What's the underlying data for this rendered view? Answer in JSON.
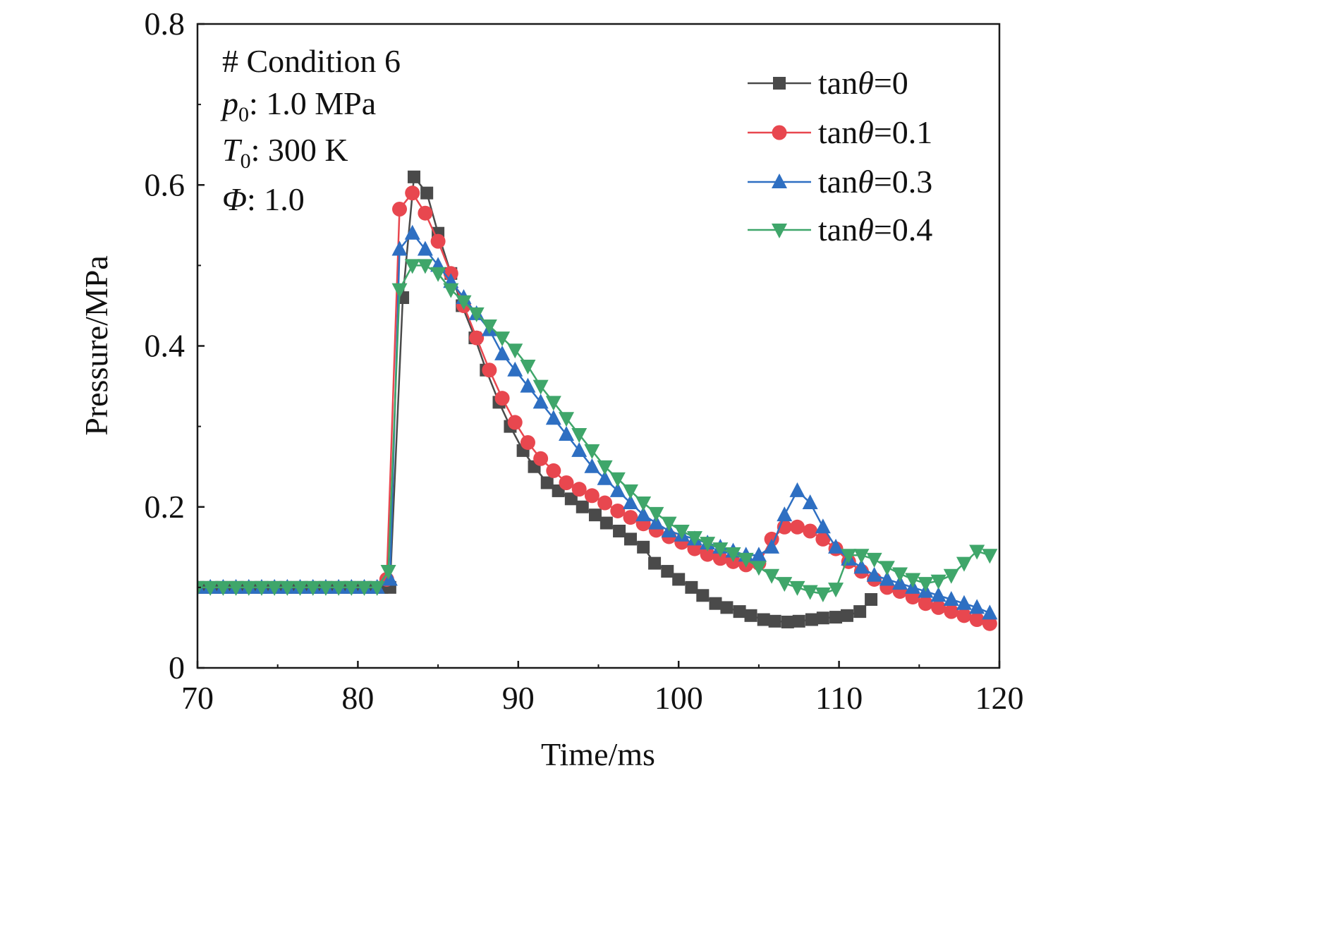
{
  "chart_data": {
    "type": "line",
    "xlabel": "Time/ms",
    "ylabel": "Pressure/MPa",
    "xlim": [
      70,
      120
    ],
    "ylim": [
      0,
      0.8
    ],
    "xticks": [
      "70",
      "80",
      "90",
      "100",
      "110",
      "120"
    ],
    "yticks": [
      "0",
      "0.2",
      "0.4",
      "0.6",
      "0.8"
    ],
    "grid": false,
    "legend_position": "top-right",
    "annotations": [
      {
        "prefix": "# Condition 6",
        "sym": "",
        "sub": "",
        "rest": ""
      },
      {
        "prefix": "",
        "sym": "p",
        "sub": "0",
        "rest": ": 1.0 MPa"
      },
      {
        "prefix": "",
        "sym": "T",
        "sub": "0",
        "rest": ": 300 K"
      },
      {
        "prefix": "",
        "sym": "Φ",
        "sub": "",
        "rest": ": 1.0"
      }
    ],
    "series": [
      {
        "name": "tanθ=0",
        "legend": {
          "pre": "tan",
          "sym": "θ",
          "post": "=0"
        },
        "color": "#4a4a4a",
        "marker": "square",
        "points": [
          [
            70.0,
            0.1
          ],
          [
            70.5,
            0.1
          ],
          [
            71.0,
            0.1
          ],
          [
            71.5,
            0.1
          ],
          [
            72.0,
            0.1
          ],
          [
            72.5,
            0.1
          ],
          [
            73.0,
            0.1
          ],
          [
            73.5,
            0.1
          ],
          [
            74.0,
            0.1
          ],
          [
            74.5,
            0.1
          ],
          [
            75.0,
            0.1
          ],
          [
            75.5,
            0.1
          ],
          [
            76.0,
            0.1
          ],
          [
            76.5,
            0.1
          ],
          [
            77.0,
            0.1
          ],
          [
            77.5,
            0.1
          ],
          [
            78.0,
            0.1
          ],
          [
            78.5,
            0.1
          ],
          [
            79.0,
            0.1
          ],
          [
            79.5,
            0.1
          ],
          [
            80.0,
            0.1
          ],
          [
            80.5,
            0.1
          ],
          [
            81.0,
            0.1
          ],
          [
            81.5,
            0.1
          ],
          [
            82.0,
            0.1
          ],
          [
            82.8,
            0.46
          ],
          [
            83.5,
            0.61
          ],
          [
            84.3,
            0.59
          ],
          [
            85.0,
            0.54
          ],
          [
            85.8,
            0.49
          ],
          [
            86.5,
            0.45
          ],
          [
            87.3,
            0.41
          ],
          [
            88.0,
            0.37
          ],
          [
            88.8,
            0.33
          ],
          [
            89.5,
            0.3
          ],
          [
            90.3,
            0.27
          ],
          [
            91.0,
            0.25
          ],
          [
            91.8,
            0.23
          ],
          [
            92.5,
            0.22
          ],
          [
            93.3,
            0.21
          ],
          [
            94.0,
            0.2
          ],
          [
            94.8,
            0.19
          ],
          [
            95.5,
            0.18
          ],
          [
            96.3,
            0.17
          ],
          [
            97.0,
            0.16
          ],
          [
            97.8,
            0.15
          ],
          [
            98.5,
            0.13
          ],
          [
            99.3,
            0.12
          ],
          [
            100.0,
            0.11
          ],
          [
            100.8,
            0.1
          ],
          [
            101.5,
            0.09
          ],
          [
            102.3,
            0.08
          ],
          [
            103.0,
            0.075
          ],
          [
            103.8,
            0.07
          ],
          [
            104.5,
            0.065
          ],
          [
            105.3,
            0.06
          ],
          [
            106.0,
            0.058
          ],
          [
            106.8,
            0.057
          ],
          [
            107.5,
            0.058
          ],
          [
            108.3,
            0.06
          ],
          [
            109.0,
            0.062
          ],
          [
            109.8,
            0.063
          ],
          [
            110.5,
            0.065
          ],
          [
            111.3,
            0.07
          ],
          [
            112.0,
            0.085
          ]
        ]
      },
      {
        "name": "tanθ=0.1",
        "legend": {
          "pre": "tan",
          "sym": "θ",
          "post": "=0.1"
        },
        "color": "#e8474f",
        "marker": "circle",
        "points": [
          [
            81.8,
            0.11
          ],
          [
            82.6,
            0.57
          ],
          [
            83.4,
            0.59
          ],
          [
            84.2,
            0.565
          ],
          [
            85.0,
            0.53
          ],
          [
            85.8,
            0.49
          ],
          [
            86.6,
            0.45
          ],
          [
            87.4,
            0.41
          ],
          [
            88.2,
            0.37
          ],
          [
            89.0,
            0.335
          ],
          [
            89.8,
            0.305
          ],
          [
            90.6,
            0.28
          ],
          [
            91.4,
            0.26
          ],
          [
            92.2,
            0.245
          ],
          [
            93.0,
            0.23
          ],
          [
            93.8,
            0.222
          ],
          [
            94.6,
            0.214
          ],
          [
            95.4,
            0.205
          ],
          [
            96.2,
            0.195
          ],
          [
            97.0,
            0.187
          ],
          [
            97.8,
            0.179
          ],
          [
            98.6,
            0.171
          ],
          [
            99.4,
            0.163
          ],
          [
            100.2,
            0.156
          ],
          [
            101.0,
            0.148
          ],
          [
            101.8,
            0.141
          ],
          [
            102.6,
            0.136
          ],
          [
            103.4,
            0.132
          ],
          [
            104.2,
            0.128
          ],
          [
            105.0,
            0.13
          ],
          [
            105.8,
            0.16
          ],
          [
            106.6,
            0.175
          ],
          [
            107.4,
            0.175
          ],
          [
            108.2,
            0.17
          ],
          [
            109.0,
            0.16
          ],
          [
            109.8,
            0.148
          ],
          [
            110.6,
            0.132
          ],
          [
            111.4,
            0.12
          ],
          [
            112.2,
            0.11
          ],
          [
            113.0,
            0.1
          ],
          [
            113.8,
            0.095
          ],
          [
            114.6,
            0.088
          ],
          [
            115.4,
            0.08
          ],
          [
            116.2,
            0.075
          ],
          [
            117.0,
            0.07
          ],
          [
            117.8,
            0.065
          ],
          [
            118.6,
            0.06
          ],
          [
            119.4,
            0.055
          ]
        ]
      },
      {
        "name": "tanθ=0.3",
        "legend": {
          "pre": "tan",
          "sym": "θ",
          "post": "=0.3"
        },
        "color": "#2e6fc2",
        "marker": "triangle-up",
        "points": [
          [
            70.0,
            0.1
          ],
          [
            70.8,
            0.1
          ],
          [
            71.6,
            0.1
          ],
          [
            72.4,
            0.1
          ],
          [
            73.2,
            0.1
          ],
          [
            74.0,
            0.1
          ],
          [
            74.8,
            0.1
          ],
          [
            75.6,
            0.1
          ],
          [
            76.4,
            0.1
          ],
          [
            77.2,
            0.1
          ],
          [
            78.0,
            0.1
          ],
          [
            78.8,
            0.1
          ],
          [
            79.6,
            0.1
          ],
          [
            80.4,
            0.1
          ],
          [
            81.2,
            0.1
          ],
          [
            82.0,
            0.11
          ],
          [
            82.6,
            0.52
          ],
          [
            83.4,
            0.54
          ],
          [
            84.2,
            0.52
          ],
          [
            85.0,
            0.5
          ],
          [
            85.8,
            0.48
          ],
          [
            86.6,
            0.46
          ],
          [
            87.4,
            0.44
          ],
          [
            88.2,
            0.42
          ],
          [
            89.0,
            0.39
          ],
          [
            89.8,
            0.37
          ],
          [
            90.6,
            0.35
          ],
          [
            91.4,
            0.33
          ],
          [
            92.2,
            0.31
          ],
          [
            93.0,
            0.29
          ],
          [
            93.8,
            0.27
          ],
          [
            94.6,
            0.25
          ],
          [
            95.4,
            0.235
          ],
          [
            96.2,
            0.22
          ],
          [
            97.0,
            0.205
          ],
          [
            97.8,
            0.19
          ],
          [
            98.6,
            0.18
          ],
          [
            99.4,
            0.17
          ],
          [
            100.2,
            0.165
          ],
          [
            101.0,
            0.16
          ],
          [
            101.8,
            0.155
          ],
          [
            102.6,
            0.15
          ],
          [
            103.4,
            0.145
          ],
          [
            104.2,
            0.14
          ],
          [
            105.0,
            0.14
          ],
          [
            105.8,
            0.15
          ],
          [
            106.6,
            0.19
          ],
          [
            107.4,
            0.22
          ],
          [
            108.2,
            0.205
          ],
          [
            109.0,
            0.175
          ],
          [
            109.8,
            0.15
          ],
          [
            110.6,
            0.135
          ],
          [
            111.4,
            0.125
          ],
          [
            112.2,
            0.115
          ],
          [
            113.0,
            0.11
          ],
          [
            113.8,
            0.105
          ],
          [
            114.6,
            0.1
          ],
          [
            115.4,
            0.095
          ],
          [
            116.2,
            0.09
          ],
          [
            117.0,
            0.085
          ],
          [
            117.8,
            0.08
          ],
          [
            118.6,
            0.075
          ],
          [
            119.4,
            0.068
          ]
        ]
      },
      {
        "name": "tanθ=0.4",
        "legend": {
          "pre": "tan",
          "sym": "θ",
          "post": "=0.4"
        },
        "color": "#3fa66a",
        "marker": "triangle-down",
        "points": [
          [
            70.0,
            0.1
          ],
          [
            70.8,
            0.1
          ],
          [
            71.6,
            0.1
          ],
          [
            72.4,
            0.1
          ],
          [
            73.2,
            0.1
          ],
          [
            74.0,
            0.1
          ],
          [
            74.8,
            0.1
          ],
          [
            75.6,
            0.1
          ],
          [
            76.4,
            0.1
          ],
          [
            77.2,
            0.1
          ],
          [
            78.0,
            0.1
          ],
          [
            78.8,
            0.1
          ],
          [
            79.6,
            0.1
          ],
          [
            80.4,
            0.1
          ],
          [
            81.2,
            0.1
          ],
          [
            81.9,
            0.12
          ],
          [
            82.6,
            0.47
          ],
          [
            83.4,
            0.5
          ],
          [
            84.2,
            0.5
          ],
          [
            85.0,
            0.49
          ],
          [
            85.8,
            0.47
          ],
          [
            86.6,
            0.455
          ],
          [
            87.4,
            0.44
          ],
          [
            88.2,
            0.425
          ],
          [
            89.0,
            0.41
          ],
          [
            89.8,
            0.395
          ],
          [
            90.6,
            0.375
          ],
          [
            91.4,
            0.35
          ],
          [
            92.2,
            0.33
          ],
          [
            93.0,
            0.31
          ],
          [
            93.8,
            0.29
          ],
          [
            94.6,
            0.27
          ],
          [
            95.4,
            0.25
          ],
          [
            96.2,
            0.235
          ],
          [
            97.0,
            0.22
          ],
          [
            97.8,
            0.205
          ],
          [
            98.6,
            0.192
          ],
          [
            99.4,
            0.18
          ],
          [
            100.2,
            0.17
          ],
          [
            101.0,
            0.162
          ],
          [
            101.8,
            0.155
          ],
          [
            102.6,
            0.148
          ],
          [
            103.4,
            0.142
          ],
          [
            104.2,
            0.135
          ],
          [
            105.0,
            0.125
          ],
          [
            105.8,
            0.115
          ],
          [
            106.6,
            0.105
          ],
          [
            107.4,
            0.1
          ],
          [
            108.2,
            0.095
          ],
          [
            109.0,
            0.092
          ],
          [
            109.8,
            0.098
          ],
          [
            110.6,
            0.14
          ],
          [
            111.4,
            0.14
          ],
          [
            112.2,
            0.135
          ],
          [
            113.0,
            0.125
          ],
          [
            113.8,
            0.117
          ],
          [
            114.6,
            0.11
          ],
          [
            115.4,
            0.105
          ],
          [
            116.2,
            0.108
          ],
          [
            117.0,
            0.115
          ],
          [
            117.8,
            0.13
          ],
          [
            118.6,
            0.145
          ],
          [
            119.4,
            0.14
          ]
        ]
      }
    ]
  }
}
